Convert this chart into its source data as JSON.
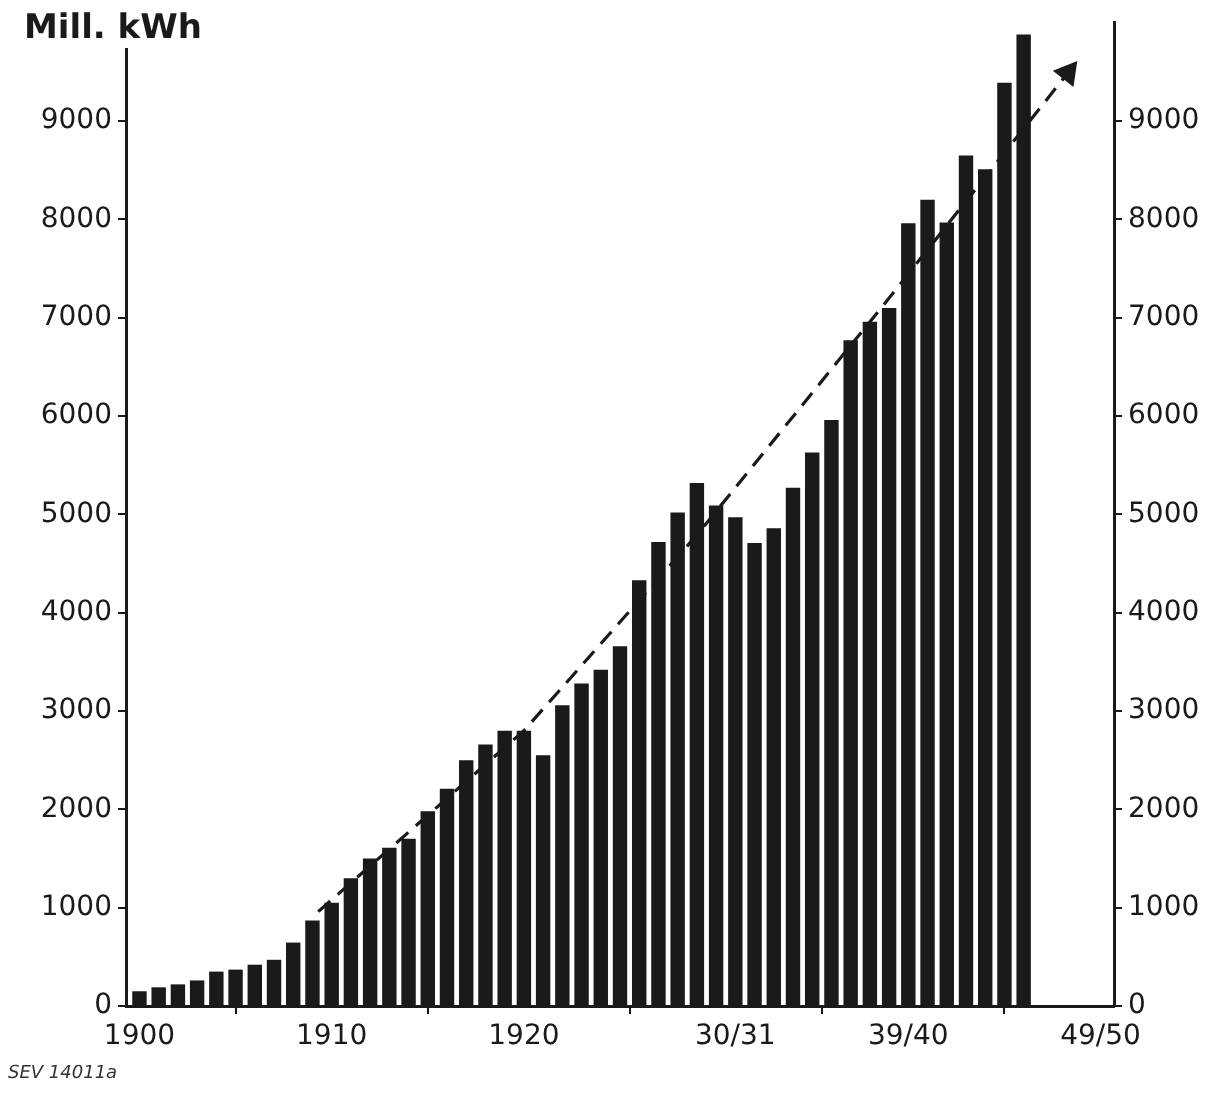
{
  "chart_data": {
    "type": "bar",
    "ylabel": "Mill. kWh",
    "annotations": [
      "SEV 14011a"
    ],
    "x": [
      1900,
      1901,
      1902,
      1903,
      1904,
      1905,
      1906,
      1907,
      1908,
      1909,
      1910,
      1911,
      1912,
      1913,
      1914,
      1915,
      1916,
      1917,
      1918,
      1919,
      1920,
      1921,
      1922,
      1923,
      1924,
      1925,
      1926,
      1927,
      1928,
      1929,
      1930,
      1931,
      1932,
      1933,
      1934,
      1935,
      1936,
      1937,
      1938,
      1939,
      1940,
      1941,
      1942,
      1943,
      1944,
      1945,
      1946
    ],
    "series": [
      {
        "color": "#1a1a1a",
        "values": [
          150,
          190,
          220,
          260,
          350,
          370,
          420,
          470,
          645,
          870,
          1050,
          1300,
          1500,
          1610,
          1700,
          1980,
          2210,
          2500,
          2660,
          2800,
          2800,
          2550,
          3060,
          3280,
          3420,
          3660,
          4330,
          4720,
          5020,
          5320,
          5090,
          4970,
          4710,
          4860,
          5270,
          5630,
          5960,
          6770,
          6960,
          7100,
          7960,
          8200,
          7970,
          8650,
          8510,
          9390,
          9880
        ]
      },
      {
        "type": "line",
        "color": "#1a1a1a",
        "line_style": "dashed",
        "marker": "none",
        "x": [
          1909.3,
          1920,
          1929,
          1939,
          1948.3
        ],
        "values": [
          960,
          2800,
          4790,
          7200,
          9490
        ]
      }
    ],
    "xlim": [
      1899.3,
      1950.7
    ],
    "xticks": [
      1900,
      1910,
      1920,
      {
        "value": 1931,
        "label": "30/31"
      },
      {
        "value": 1940,
        "label": "39/40"
      },
      {
        "value": 1950,
        "label": "49/50"
      }
    ],
    "ylim": [
      0,
      10000
    ],
    "yticks": [
      0,
      1000,
      2000,
      3000,
      4000,
      5000,
      6000,
      7000,
      8000,
      9000
    ],
    "y2lim": [
      0,
      10000
    ],
    "y2ticks": [
      0,
      1000,
      2000,
      3000,
      4000,
      5000,
      6000,
      7000,
      8000,
      9000
    ]
  }
}
